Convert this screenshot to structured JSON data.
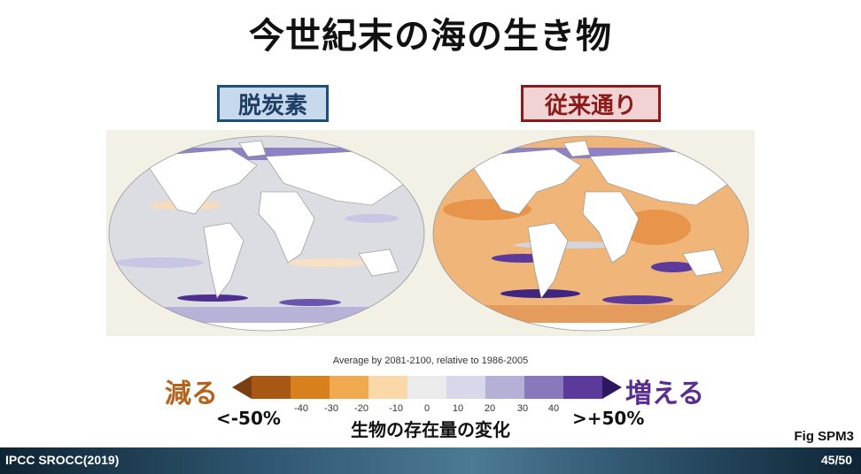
{
  "slide": {
    "title": "今世紀末の海の生き物",
    "scenario_left": "脱炭素",
    "scenario_right": "従来通り",
    "average_note": "Average by 2081-2100, relative to 1986-2005",
    "decrease_label": "減る",
    "increase_label": "増える",
    "min_label": "<-50%",
    "max_label": ">+50%",
    "ticks": [
      "-40",
      "-30",
      "-20",
      "-10",
      "0",
      "10",
      "20",
      "30",
      "40"
    ],
    "caption": "生物の存在量の変化",
    "fig_ref": "Fig SPM3",
    "footer_source": "IPCC SROCC(2019)",
    "page_number": "45/50"
  },
  "colorbar_colors": [
    "#7a3e10",
    "#a95715",
    "#d9801e",
    "#f1a94f",
    "#fbd8a8",
    "#ebebeb",
    "#d7d9ea",
    "#b4b0d6",
    "#8a78bd",
    "#5b3a9c",
    "#2e1761"
  ]
}
